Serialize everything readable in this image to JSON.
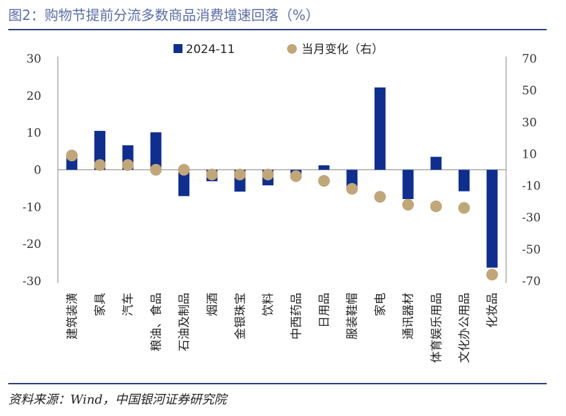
{
  "title": "图2：购物节提前分流多数商品消费增速回落（%）",
  "source": "资料来源：Wind，中国银河证券研究院",
  "chart_data": {
    "type": "bar",
    "categories": [
      "建筑装潢",
      "家具",
      "汽车",
      "粮油、食品",
      "石油及制品",
      "烟酒",
      "金银珠宝",
      "饮料",
      "中西药品",
      "日用品",
      "服装鞋帽",
      "家电",
      "通讯器材",
      "体育娱乐用品",
      "文化办公用品",
      "化妆品"
    ],
    "series": [
      {
        "name": "2024-11",
        "axis": "left",
        "kind": "bar",
        "color": "#0e2f8f",
        "values": [
          3.5,
          10.5,
          6.6,
          10.1,
          -7.1,
          -3.1,
          -5.9,
          -4.2,
          -1.3,
          1.2,
          -4.6,
          22.2,
          -7.9,
          3.5,
          -5.8,
          -26.4
        ]
      },
      {
        "name": "当月变化（右）",
        "axis": "right",
        "kind": "scatter",
        "color": "#c1a678",
        "values": [
          9,
          3,
          3,
          0,
          0,
          -3,
          -3,
          -3,
          -4,
          -7,
          -12,
          -17,
          -22,
          -23,
          -24,
          -66
        ]
      }
    ],
    "left_axis": {
      "ylim": [
        -30,
        30
      ],
      "ticks": [
        "30",
        "20",
        "10",
        "0",
        "-10",
        "-20",
        "-30"
      ]
    },
    "right_axis": {
      "ylim": [
        -70,
        70
      ],
      "ticks": [
        "70",
        "50",
        "30",
        "10",
        "-10",
        "-30",
        "-50",
        "-70"
      ]
    },
    "legend": "top",
    "grid": false
  }
}
